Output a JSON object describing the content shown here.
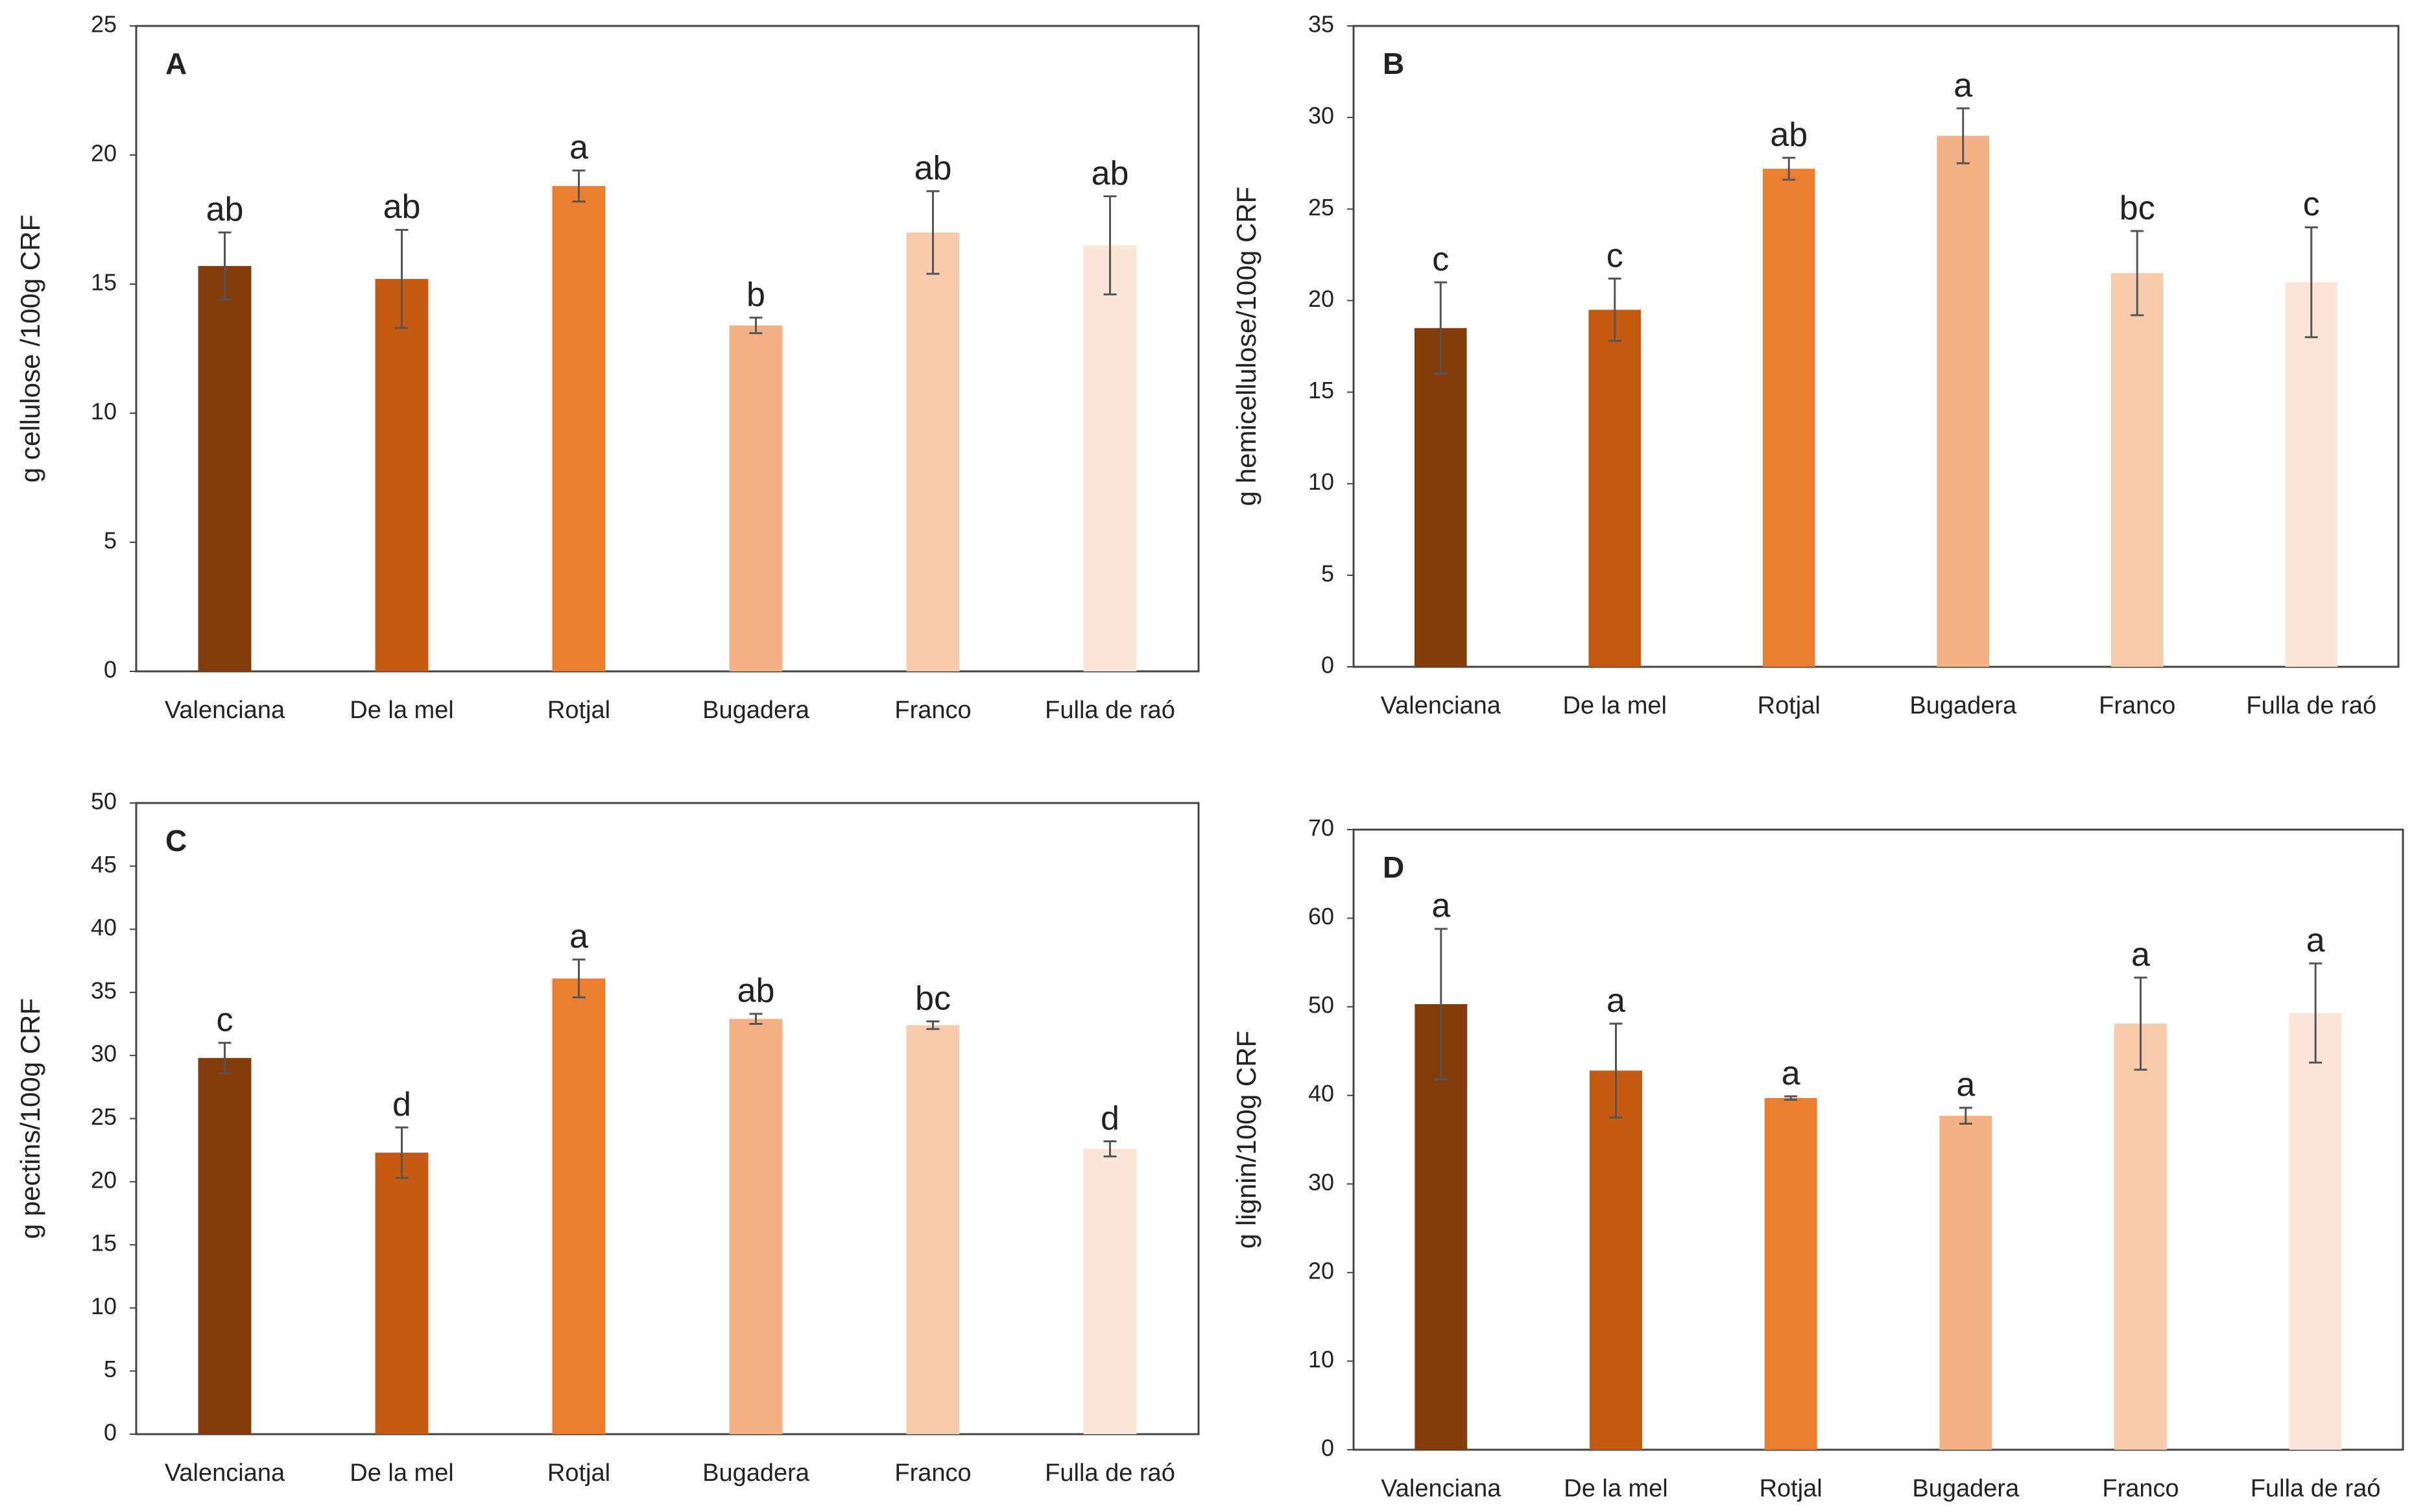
{
  "chart_data": [
    {
      "type": "bar",
      "panel": "A",
      "ylabel": "g cellulose /100g CRF",
      "categories": [
        "Valenciana",
        "De la mel",
        "Rotjal",
        "Bugadera",
        "Franco",
        "Fulla de raó"
      ],
      "values": [
        15.7,
        15.2,
        18.8,
        13.4,
        17.0,
        16.5
      ],
      "errors": [
        1.3,
        1.9,
        0.6,
        0.3,
        1.6,
        1.9
      ],
      "annotations": [
        "ab",
        "ab",
        "a",
        "b",
        "ab",
        "ab"
      ],
      "colors": [
        "#843c0c",
        "#c55a11",
        "#ed7d31",
        "#f4b183",
        "#f8cbad",
        "#fbe5d6"
      ],
      "ylim": [
        0,
        25
      ],
      "yticks": [
        0,
        5,
        10,
        15,
        20,
        25
      ]
    },
    {
      "type": "bar",
      "panel": "B",
      "ylabel": "g hemicellulose/100g CRF",
      "categories": [
        "Valenciana",
        "De la mel",
        "Rotjal",
        "Bugadera",
        "Franco",
        "Fulla de raó"
      ],
      "values": [
        18.5,
        19.5,
        27.2,
        29.0,
        21.5,
        21.0
      ],
      "errors": [
        2.5,
        1.7,
        0.6,
        1.5,
        2.3,
        3.0
      ],
      "annotations": [
        "c",
        "c",
        "ab",
        "a",
        "bc",
        "c"
      ],
      "colors": [
        "#843c0c",
        "#c55a11",
        "#ed7d31",
        "#f4b183",
        "#f8cbad",
        "#fbe5d6"
      ],
      "ylim": [
        0,
        35
      ],
      "yticks": [
        0,
        5,
        10,
        15,
        20,
        25,
        30,
        35
      ]
    },
    {
      "type": "bar",
      "panel": "C",
      "ylabel": "g pectins/100g CRF",
      "categories": [
        "Valenciana",
        "De la mel",
        "Rotjal",
        "Bugadera",
        "Franco",
        "Fulla de raó"
      ],
      "values": [
        29.8,
        22.3,
        36.1,
        32.9,
        32.4,
        22.6
      ],
      "errors": [
        1.2,
        2.0,
        1.5,
        0.4,
        0.3,
        0.6
      ],
      "annotations": [
        "c",
        "d",
        "a",
        "ab",
        "bc",
        "d"
      ],
      "colors": [
        "#843c0c",
        "#c55a11",
        "#ed7d31",
        "#f4b183",
        "#f8cbad",
        "#fbe5d6"
      ],
      "ylim": [
        0,
        50
      ],
      "yticks": [
        0,
        5,
        10,
        15,
        20,
        25,
        30,
        35,
        40,
        45,
        50
      ]
    },
    {
      "type": "bar",
      "panel": "D",
      "ylabel": "g lignin/100g CRF",
      "categories": [
        "Valenciana",
        "De la mel",
        "Rotjal",
        "Bugadera",
        "Franco",
        "Fulla de raó"
      ],
      "values": [
        50.3,
        42.8,
        39.7,
        37.7,
        48.1,
        49.3
      ],
      "errors": [
        8.5,
        5.3,
        0.2,
        0.9,
        5.2,
        5.6
      ],
      "annotations": [
        "a",
        "a",
        "a",
        "a",
        "a",
        "a"
      ],
      "colors": [
        "#843c0c",
        "#c55a11",
        "#ed7d31",
        "#f4b183",
        "#f8cbad",
        "#fbe5d6"
      ],
      "ylim": [
        0,
        70
      ],
      "yticks": [
        0,
        10,
        20,
        30,
        40,
        50,
        60,
        70
      ]
    }
  ]
}
